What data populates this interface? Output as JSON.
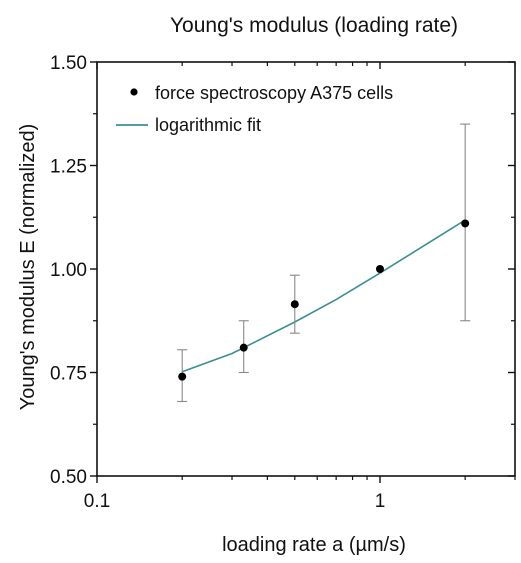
{
  "chart_data": {
    "type": "scatter",
    "title": "Young's modulus (loading rate)",
    "xlabel": "loading rate a (µm/s)",
    "ylabel": "Young's modulus E (normalized)",
    "xscale": "log",
    "xlim": [
      0.1,
      3
    ],
    "ylim": [
      0.5,
      1.5
    ],
    "xticks": [
      0.1,
      1
    ],
    "xtick_labels": [
      "0.1",
      "1"
    ],
    "yticks": [
      0.5,
      0.75,
      1.0,
      1.25,
      1.5
    ],
    "ytick_labels": [
      "0.50",
      "0.75",
      "1.00",
      "1.25",
      "1.50"
    ],
    "grid": false,
    "legend_position": "top-left",
    "series": [
      {
        "name": "force spectroscopy A375 cells",
        "kind": "points",
        "color": "#000000",
        "x": [
          0.2,
          0.33,
          0.5,
          1.0,
          2.0
        ],
        "y": [
          0.74,
          0.81,
          0.915,
          1.0,
          1.11
        ],
        "err_low": [
          0.68,
          0.75,
          0.845,
          1.0,
          0.875
        ],
        "err_high": [
          0.805,
          0.875,
          0.985,
          1.0,
          1.35
        ]
      },
      {
        "name": "logarithmic fit",
        "kind": "line",
        "color": "#3a8f94",
        "x": [
          0.2,
          0.3,
          0.5,
          0.7,
          1.0,
          1.5,
          2.0
        ],
        "y": [
          0.752,
          0.796,
          0.872,
          0.926,
          0.99,
          1.065,
          1.118
        ]
      }
    ]
  }
}
